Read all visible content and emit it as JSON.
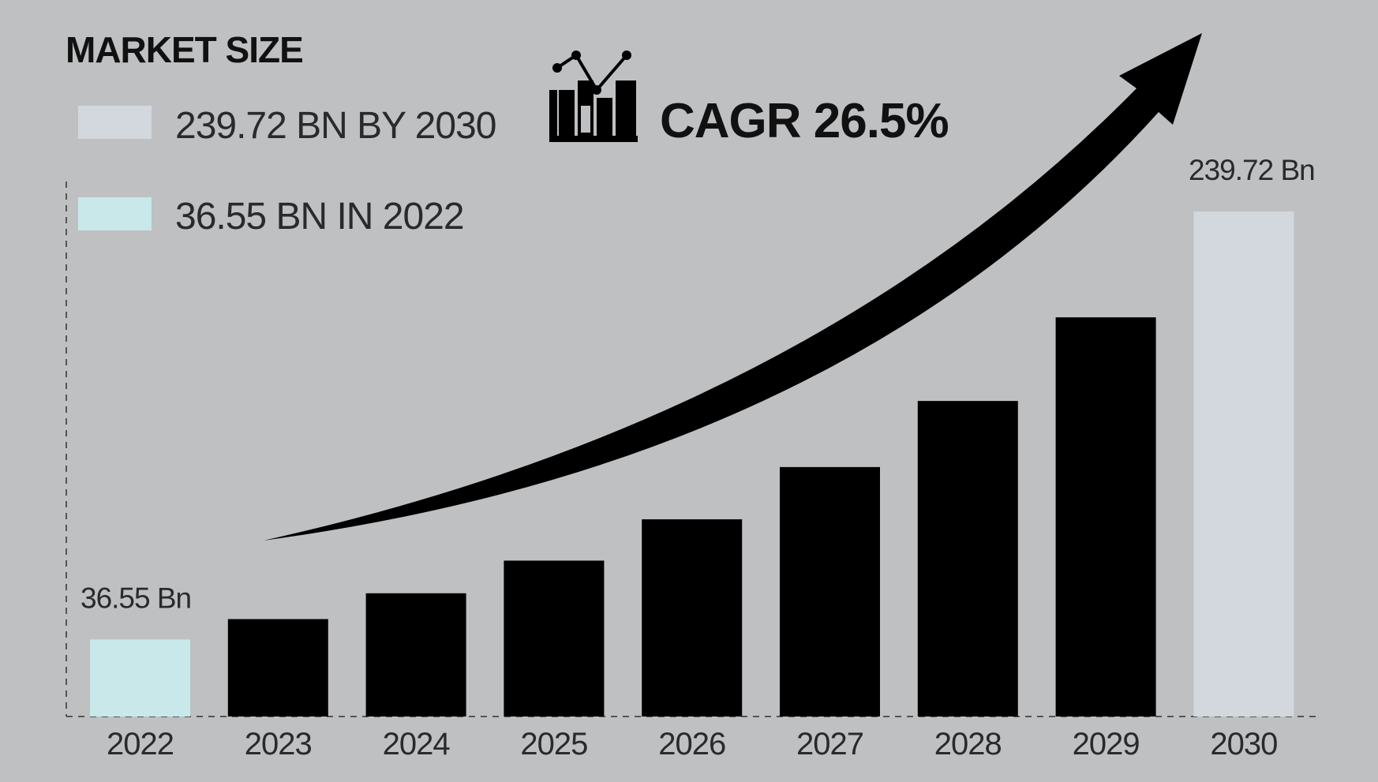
{
  "header": {
    "title": "MARKET SIZE",
    "cagr_label": "CAGR 26.5%",
    "icon": "bar-chart-trend-icon"
  },
  "legend": [
    {
      "label": "239.72 BN BY 2030",
      "color": "#d3d8de"
    },
    {
      "label": "36.55 BN IN 2022",
      "color": "#c8e8ea"
    }
  ],
  "chart_data": {
    "type": "bar",
    "title": "MARKET SIZE",
    "xlabel": "",
    "ylabel": "",
    "categories": [
      "2022",
      "2023",
      "2024",
      "2025",
      "2026",
      "2027",
      "2028",
      "2029",
      "2030"
    ],
    "values": [
      36.55,
      46.24,
      58.49,
      73.99,
      93.6,
      118.4,
      149.78,
      189.47,
      239.72
    ],
    "colors": [
      "#c8e8ea",
      "#000000",
      "#000000",
      "#000000",
      "#000000",
      "#000000",
      "#000000",
      "#000000",
      "#d3d8de"
    ],
    "data_labels": {
      "0": "36.55 Bn",
      "8": "239.72 Bn"
    },
    "ylim": [
      0,
      239.72
    ],
    "grid": false,
    "annotation": "CAGR 26.5%",
    "background": "#bfc0c2"
  }
}
